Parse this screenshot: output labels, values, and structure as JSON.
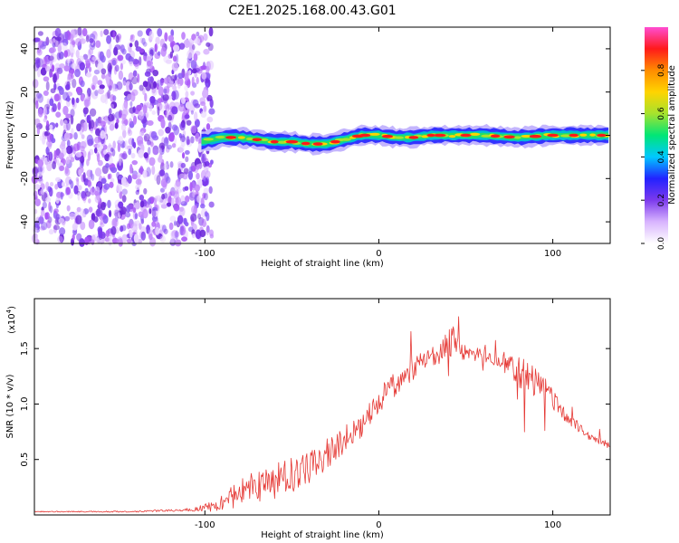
{
  "figure": {
    "title": "C2E1.2025.168.00.43.G01"
  },
  "colors": {
    "snr_line": "#e53935",
    "axis": "#000000",
    "background": "#ffffff"
  },
  "chart_data": [
    {
      "type": "heatmap",
      "name": "spectrogram",
      "xlabel": "Height of straight line (km)",
      "ylabel": "Frequency (Hz)",
      "xlim": [
        -198,
        133
      ],
      "ylim": [
        -50,
        50
      ],
      "xticks": [
        -100,
        0,
        100
      ],
      "xtick_labels": [
        "-100",
        "0",
        "100"
      ],
      "yticks": [
        -40,
        -20,
        0,
        20,
        40
      ],
      "ytick_labels": [
        "-40",
        "-20",
        "0",
        "20",
        "40"
      ],
      "noise_region": {
        "x": [
          -198,
          -96
        ],
        "freq": [
          -50,
          48
        ]
      },
      "signal_band": {
        "x": [
          -102,
          -90,
          -80,
          -70,
          -60,
          -50,
          -40,
          -30,
          -20,
          -10,
          0,
          10,
          20,
          30,
          40,
          60,
          80,
          100,
          120,
          133
        ],
        "center_hz": [
          -3,
          -1,
          -1,
          -2,
          -3,
          -3,
          -4,
          -4,
          -2,
          0,
          0,
          -1,
          -1,
          0,
          0,
          0,
          -1,
          0,
          0,
          0
        ],
        "hot_spots_x": [
          -85,
          -70,
          -60,
          -50,
          -42,
          -35,
          -25,
          -12,
          -8,
          5,
          20,
          30,
          35,
          50,
          67,
          75,
          90,
          100,
          112,
          128
        ]
      },
      "colorbar": {
        "label": "Normalized spectral amplitude",
        "range": [
          0,
          1
        ],
        "ticks": [
          0.0,
          0.2,
          0.4,
          0.6,
          0.8
        ],
        "tick_labels": [
          "0.0",
          "0.2",
          "0.4",
          "0.6",
          "0.8"
        ],
        "stops": [
          "#ffffff",
          "#d8b4fe",
          "#7c3aed",
          "#2222ff",
          "#00c8ff",
          "#00e676",
          "#a6e22e",
          "#ffd400",
          "#ff8c00",
          "#ff1a1a",
          "#ff4dd2"
        ]
      }
    },
    {
      "type": "line",
      "name": "snr",
      "xlabel": "Height of straight line (km)",
      "ylabel": "SNR (10 * v/v)",
      "y_multiplier_label": "(x10",
      "y_multiplier_exponent": "4",
      "y_multiplier_close": ")",
      "xlim": [
        -198,
        133
      ],
      "ylim": [
        0,
        1.95
      ],
      "xticks": [
        -100,
        0,
        100
      ],
      "xtick_labels": [
        "-100",
        "0",
        "100"
      ],
      "yticks": [
        0.5,
        1.0,
        1.5
      ],
      "ytick_labels": [
        "0.5",
        "1.0",
        "1.5"
      ],
      "series": [
        {
          "name": "SNR",
          "x": [
            -198,
            -170,
            -140,
            -120,
            -105,
            -96,
            -90,
            -84,
            -78,
            -70,
            -60,
            -50,
            -40,
            -30,
            -20,
            -10,
            -5,
            0,
            5,
            10,
            18,
            25,
            32,
            38,
            42,
            45,
            50,
            60,
            70,
            78,
            85,
            90,
            95,
            100,
            105,
            110,
            120,
            133
          ],
          "y": [
            0.03,
            0.03,
            0.03,
            0.04,
            0.05,
            0.08,
            0.12,
            0.16,
            0.22,
            0.26,
            0.3,
            0.36,
            0.43,
            0.55,
            0.68,
            0.8,
            0.92,
            1.02,
            1.12,
            1.2,
            1.3,
            1.38,
            1.44,
            1.5,
            1.55,
            1.5,
            1.46,
            1.44,
            1.4,
            1.3,
            1.24,
            1.18,
            1.15,
            1.05,
            0.95,
            0.85,
            0.72,
            0.62
          ],
          "jitter": [
            0.005,
            0.005,
            0.006,
            0.01,
            0.02,
            0.05,
            0.08,
            0.1,
            0.12,
            0.16,
            0.16,
            0.16,
            0.14,
            0.14,
            0.13,
            0.1,
            0.1,
            0.1,
            0.12,
            0.12,
            0.1,
            0.1,
            0.1,
            0.12,
            0.18,
            0.12,
            0.06,
            0.06,
            0.08,
            0.14,
            0.16,
            0.14,
            0.12,
            0.1,
            0.08,
            0.06,
            0.04,
            0.03
          ]
        }
      ]
    }
  ]
}
